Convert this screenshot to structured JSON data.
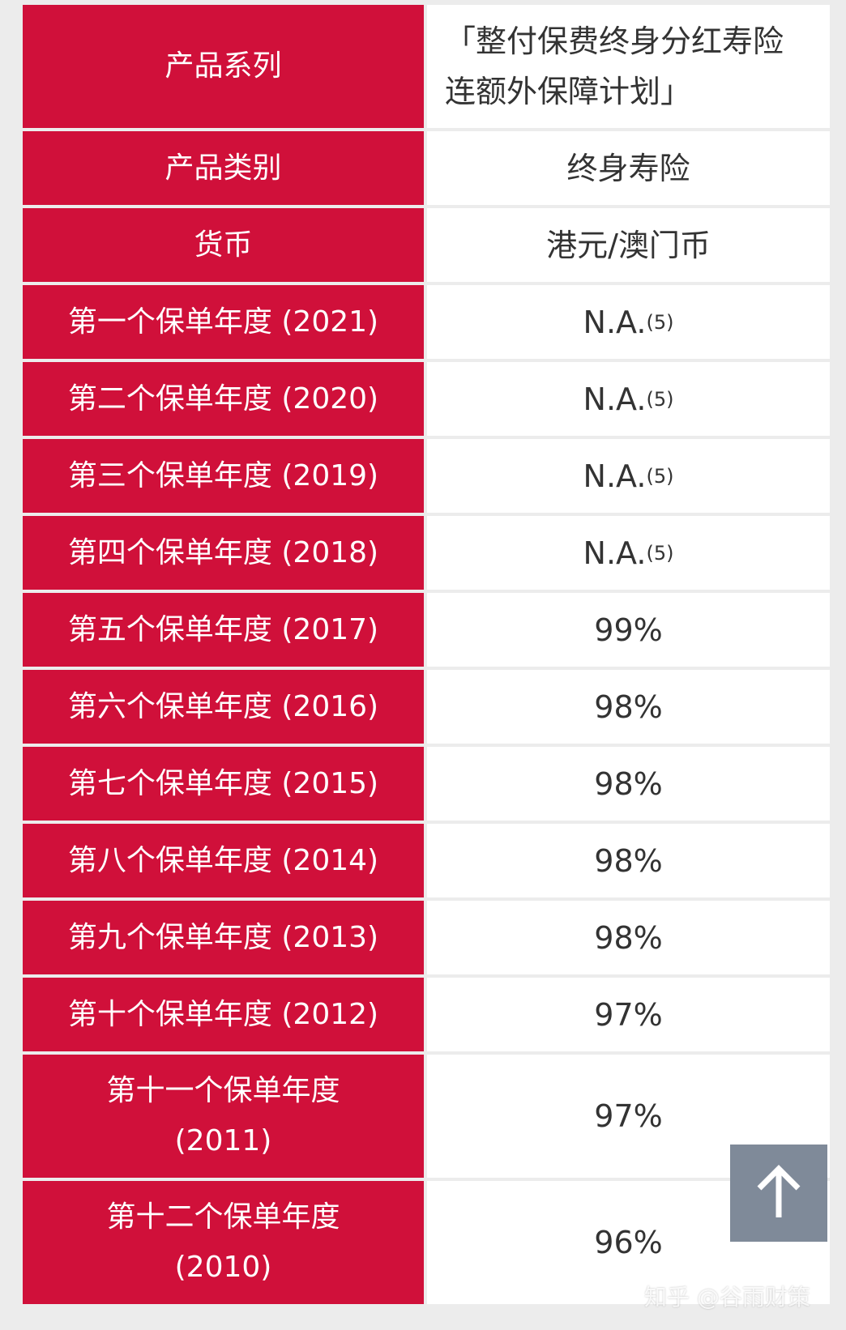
{
  "table": {
    "rows": [
      {
        "label": "产品系列",
        "value": "「整付保费终身分红寿险连额外保障计划」"
      },
      {
        "label": "产品类别",
        "value": "终身寿险"
      },
      {
        "label": "货币",
        "value": "港元/澳门币"
      },
      {
        "label": "第一个保单年度 (2021)",
        "value": "N.A.",
        "note": "(5)"
      },
      {
        "label": "第二个保单年度 (2020)",
        "value": "N.A.",
        "note": "(5)"
      },
      {
        "label": "第三个保单年度 (2019)",
        "value": "N.A.",
        "note": "(5)"
      },
      {
        "label": "第四个保单年度 (2018)",
        "value": "N.A.",
        "note": "(5)"
      },
      {
        "label": "第五个保单年度 (2017)",
        "value": "99%"
      },
      {
        "label": "第六个保单年度 (2016)",
        "value": "98%"
      },
      {
        "label": "第七个保单年度 (2015)",
        "value": "98%"
      },
      {
        "label": "第八个保单年度 (2014)",
        "value": "98%"
      },
      {
        "label": "第九个保单年度 (2013)",
        "value": "98%"
      },
      {
        "label": "第十个保单年度 (2012)",
        "value": "97%"
      },
      {
        "label": "第十一个保单年度\n(2011)",
        "value": "97%"
      },
      {
        "label": "第十二个保单年度\n(2010)",
        "value": "96%"
      }
    ]
  },
  "watermark": "知乎 @谷雨财策"
}
